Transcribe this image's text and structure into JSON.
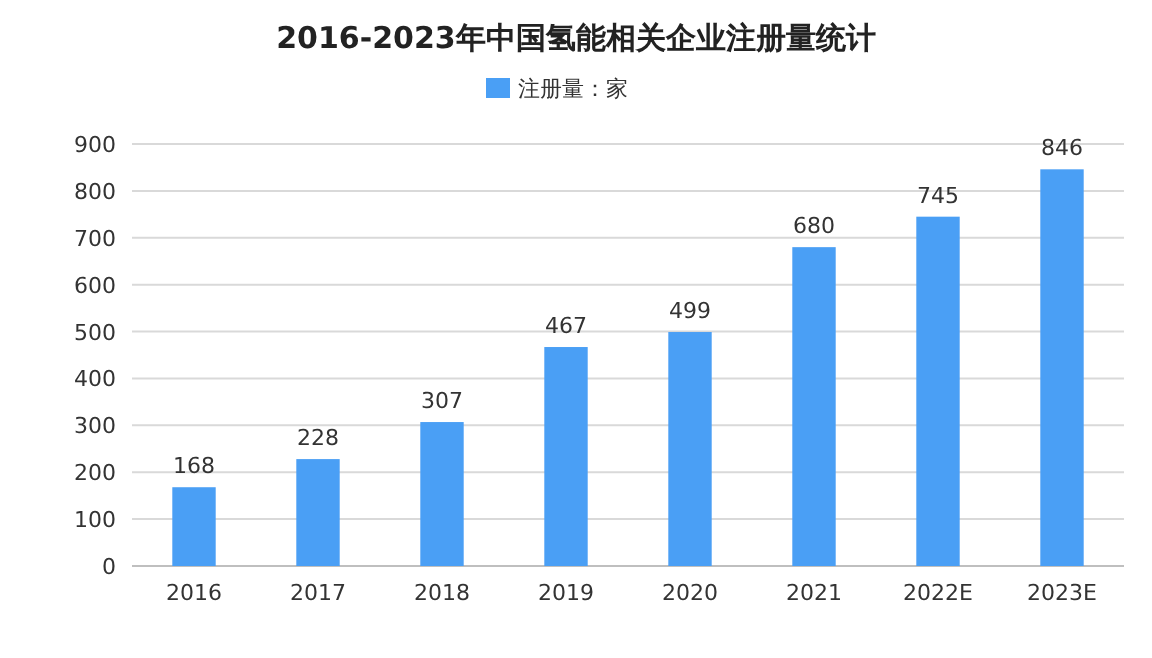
{
  "chart_data": {
    "type": "bar",
    "title": "2016-2023年中国氢能相关企业注册量统计",
    "categories": [
      "2016",
      "2017",
      "2018",
      "2019",
      "2020",
      "2021",
      "2022E",
      "2023E"
    ],
    "series": [
      {
        "name": "注册量：家",
        "color": "#4a9ff5",
        "values": [
          168,
          228,
          307,
          467,
          499,
          680,
          745,
          846
        ]
      }
    ],
    "ylim": [
      0,
      900
    ],
    "yticks": [
      0,
      100,
      200,
      300,
      400,
      500,
      600,
      700,
      800,
      900
    ],
    "grid": "y",
    "legend": "top",
    "data_labels": true
  }
}
